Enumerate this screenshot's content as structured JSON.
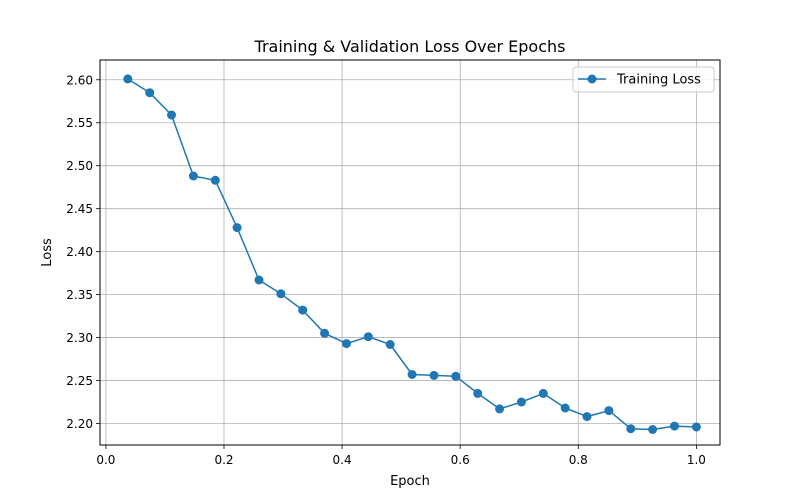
{
  "chart_data": {
    "type": "line",
    "title": "Training & Validation Loss Over Epochs",
    "xlabel": "Epoch",
    "ylabel": "Loss",
    "xlim": [
      -0.01,
      1.04
    ],
    "ylim": [
      2.175,
      2.623
    ],
    "xticks": [
      0.0,
      0.2,
      0.4,
      0.6,
      0.8,
      1.0
    ],
    "xtick_labels": [
      "0.0",
      "0.2",
      "0.4",
      "0.6",
      "0.8",
      "1.0"
    ],
    "yticks": [
      2.2,
      2.25,
      2.3,
      2.35,
      2.4,
      2.45,
      2.5,
      2.55,
      2.6
    ],
    "ytick_labels": [
      "2.20",
      "2.25",
      "2.30",
      "2.35",
      "2.40",
      "2.45",
      "2.50",
      "2.55",
      "2.60"
    ],
    "grid": true,
    "legend_position": "top-right",
    "series": [
      {
        "name": "Training Loss",
        "color": "#1f77b4",
        "marker": "circle",
        "x": [
          0.037,
          0.0741,
          0.1111,
          0.1481,
          0.1852,
          0.2222,
          0.2593,
          0.2963,
          0.3333,
          0.3704,
          0.4074,
          0.4444,
          0.4815,
          0.5185,
          0.5556,
          0.5926,
          0.6296,
          0.6667,
          0.7037,
          0.7407,
          0.7778,
          0.8148,
          0.8519,
          0.8889,
          0.9259,
          0.963,
          1.0
        ],
        "y": [
          2.601,
          2.585,
          2.559,
          2.488,
          2.483,
          2.428,
          2.367,
          2.351,
          2.332,
          2.305,
          2.293,
          2.301,
          2.292,
          2.257,
          2.256,
          2.255,
          2.235,
          2.217,
          2.225,
          2.235,
          2.218,
          2.208,
          2.215,
          2.194,
          2.193,
          2.197,
          2.196
        ]
      }
    ]
  }
}
